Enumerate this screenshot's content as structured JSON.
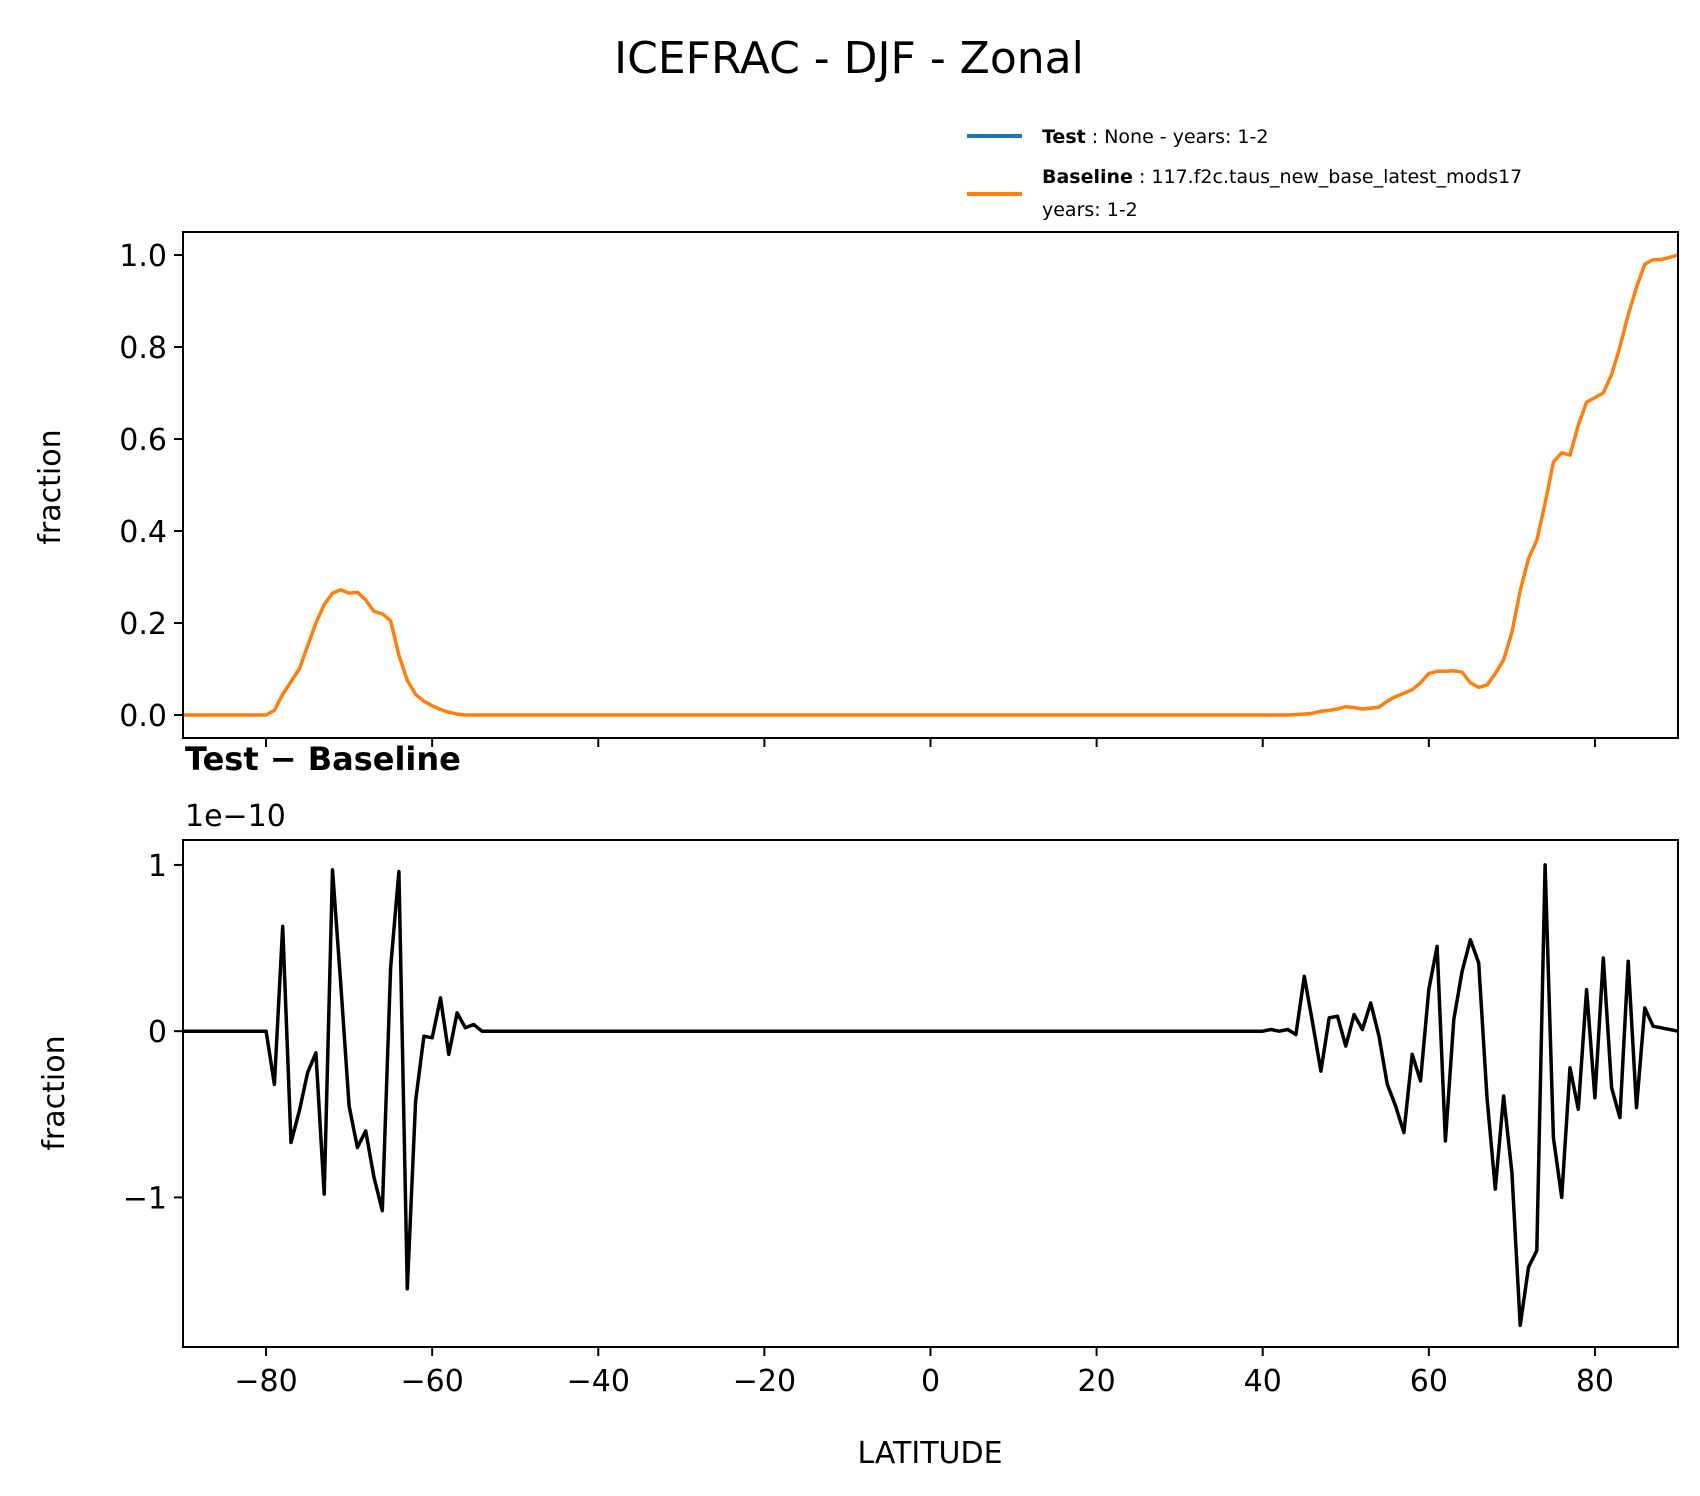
{
  "title": "ICEFRAC - DJF - Zonal",
  "legend": {
    "placement": "upper-right-above",
    "items": [
      {
        "bold": "Test",
        "sep": " : ",
        "text": "None - years: 1-2",
        "text2": "",
        "color": "#1f77b4"
      },
      {
        "bold": "Baseline",
        "sep": " : ",
        "text": "117.f2c.taus_new_base_latest_mods17",
        "text2": "years: 1-2",
        "color": "#ff7f0e"
      }
    ]
  },
  "top_panel": {
    "ylabel": "fraction",
    "yticks": [
      "0.0",
      "0.2",
      "0.4",
      "0.6",
      "0.8",
      "1.0"
    ],
    "ytick_values": [
      0,
      0.2,
      0.4,
      0.6,
      0.8,
      1.0
    ]
  },
  "bottom_panel": {
    "title": "Test − Baseline",
    "offset_label": "1e−10",
    "ylabel": "fraction",
    "xlabel": "LATITUDE",
    "yticks": [
      "−1",
      "0",
      "1"
    ],
    "ytick_values": [
      -1,
      0,
      1
    ]
  },
  "xticks": [
    "−80",
    "−60",
    "−40",
    "−20",
    "0",
    "20",
    "40",
    "60",
    "80"
  ],
  "xtick_values": [
    -80,
    -60,
    -40,
    -20,
    0,
    20,
    40,
    60,
    80
  ],
  "chart_data": [
    {
      "type": "line",
      "title": "ICEFRAC - DJF - Zonal",
      "xlabel": "",
      "ylabel": "fraction",
      "xlim": [
        -90,
        90
      ],
      "ylim": [
        -0.05,
        1.05
      ],
      "series": [
        {
          "name": "Baseline",
          "color": "#ff7f0e",
          "x": [
            -90,
            -80,
            -79,
            -78,
            -76,
            -75,
            -74,
            -73,
            -72,
            -71,
            -70,
            -69,
            -68,
            -67,
            -66,
            -65,
            -64,
            -63,
            -62,
            -61,
            -60,
            -59,
            -58,
            -57,
            -56,
            -55,
            -54,
            -50,
            0,
            40,
            43,
            45,
            46,
            47,
            48,
            49,
            50,
            51,
            52,
            53,
            54,
            55,
            56,
            57,
            58,
            59,
            60,
            61,
            62,
            63,
            64,
            65,
            66,
            67,
            68,
            69,
            70,
            71,
            72,
            73,
            74,
            75,
            76,
            77,
            78,
            79,
            80,
            81,
            82,
            83,
            84,
            85,
            86,
            87,
            88,
            89,
            90
          ],
          "y": [
            0.0,
            0.0,
            0.01,
            0.045,
            0.1,
            0.15,
            0.2,
            0.24,
            0.265,
            0.272,
            0.265,
            0.267,
            0.25,
            0.225,
            0.22,
            0.205,
            0.13,
            0.075,
            0.045,
            0.03,
            0.02,
            0.012,
            0.006,
            0.002,
            0.0,
            0.0,
            0.0,
            0.0,
            0.0,
            0.0,
            0.0,
            0.002,
            0.004,
            0.008,
            0.01,
            0.013,
            0.018,
            0.016,
            0.013,
            0.015,
            0.017,
            0.03,
            0.04,
            0.047,
            0.055,
            0.07,
            0.09,
            0.095,
            0.095,
            0.096,
            0.093,
            0.07,
            0.06,
            0.065,
            0.09,
            0.12,
            0.18,
            0.27,
            0.34,
            0.38,
            0.46,
            0.55,
            0.57,
            0.565,
            0.63,
            0.68,
            0.69,
            0.7,
            0.74,
            0.8,
            0.87,
            0.93,
            0.98,
            0.99,
            0.99,
            0.995,
            1.0
          ]
        },
        {
          "name": "Test",
          "color": "#1f77b4",
          "x": [],
          "y": []
        }
      ]
    },
    {
      "type": "line",
      "title": "Test − Baseline",
      "xlabel": "LATITUDE",
      "ylabel": "fraction",
      "y_scale_factor": "1e−10",
      "xlim": [
        -90,
        90
      ],
      "ylim": [
        -1.9,
        1.15
      ],
      "series": [
        {
          "color": "#000000",
          "x": [
            -90,
            -80,
            -79,
            -78,
            -77,
            -76,
            -75,
            -74,
            -73,
            -72,
            -71,
            -70,
            -69,
            -68,
            -67,
            -66,
            -65,
            -64,
            -63,
            -62,
            -61,
            -60,
            -59,
            -58,
            -57,
            -56,
            -55,
            -54,
            -50,
            0,
            40,
            41,
            42,
            43,
            44,
            45,
            46,
            47,
            48,
            49,
            50,
            51,
            52,
            53,
            54,
            55,
            56,
            57,
            58,
            59,
            60,
            61,
            62,
            63,
            64,
            65,
            66,
            67,
            68,
            69,
            70,
            71,
            72,
            73,
            74,
            75,
            76,
            77,
            78,
            79,
            80,
            81,
            82,
            83,
            84,
            85,
            86,
            87,
            90
          ],
          "y": [
            0.0,
            0.0,
            -0.32,
            0.63,
            -0.67,
            -0.48,
            -0.25,
            -0.13,
            -0.98,
            0.97,
            0.28,
            -0.45,
            -0.7,
            -0.6,
            -0.88,
            -1.08,
            0.38,
            0.96,
            -1.55,
            -0.42,
            -0.03,
            -0.04,
            0.2,
            -0.14,
            0.11,
            0.02,
            0.04,
            0.0,
            0.0,
            0.0,
            0.0,
            0.01,
            0.0,
            0.01,
            -0.02,
            0.33,
            0.05,
            -0.24,
            0.08,
            0.09,
            -0.09,
            0.1,
            0.01,
            0.17,
            -0.03,
            -0.32,
            -0.45,
            -0.61,
            -0.14,
            -0.3,
            0.25,
            0.51,
            -0.66,
            0.07,
            0.36,
            0.55,
            0.41,
            -0.4,
            -0.95,
            -0.39,
            -0.85,
            -1.77,
            -1.42,
            -1.32,
            1.0,
            -0.64,
            -1.0,
            -0.22,
            -0.47,
            0.25,
            -0.4,
            0.44,
            -0.34,
            -0.52,
            0.42,
            -0.46,
            0.14,
            0.03,
            0.0
          ]
        }
      ]
    }
  ]
}
